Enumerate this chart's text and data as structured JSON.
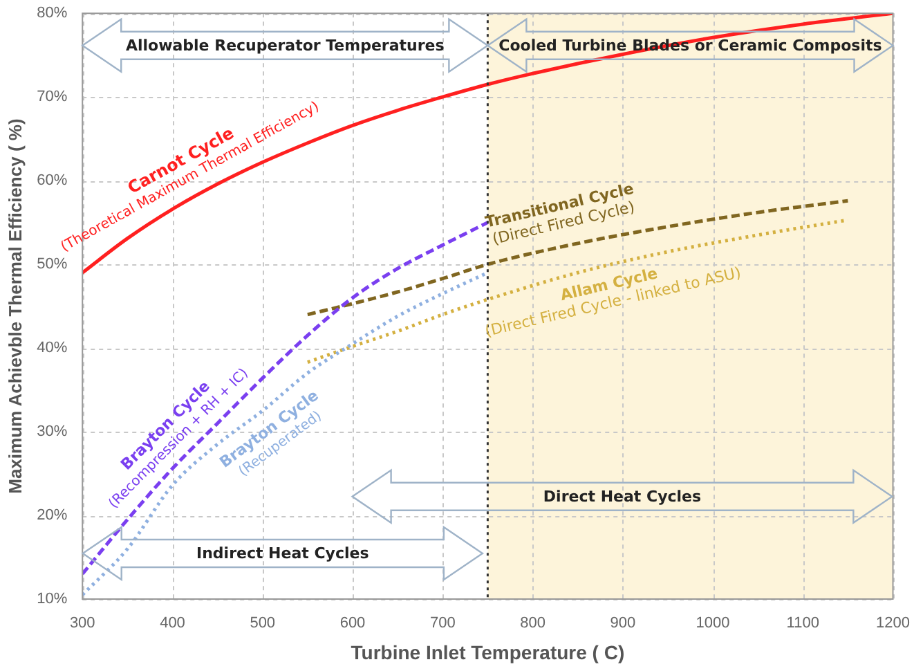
{
  "chart_data": {
    "type": "line",
    "xlabel": "Turbine Inlet Temperature ( C)",
    "ylabel": "Maximum Achievble Thermal Efficiency ( %)",
    "xlim": [
      300,
      1200
    ],
    "xticks": [
      300,
      400,
      500,
      600,
      700,
      800,
      900,
      1000,
      1100,
      1200
    ],
    "ylim": [
      10,
      80
    ],
    "yticks": [
      {
        "value": 10,
        "label": "10%"
      },
      {
        "value": 20,
        "label": "20%"
      },
      {
        "value": 30,
        "label": "30%"
      },
      {
        "value": 40,
        "label": "40%"
      },
      {
        "value": 50,
        "label": "50%"
      },
      {
        "value": 60,
        "label": "60%"
      },
      {
        "value": 70,
        "label": "70%"
      },
      {
        "value": 80,
        "label": "80%"
      }
    ],
    "grid": true,
    "legend": false,
    "marker": "none",
    "series": [
      {
        "name": "Carnot Cycle\n(Theoretical Maximum Thermal Efficiency)",
        "color": "#ff2020",
        "line_style": "solid",
        "x": [
          300,
          350,
          400,
          450,
          500,
          550,
          600,
          650,
          700,
          750,
          800,
          900,
          1000,
          1100,
          1200
        ],
        "values": [
          49,
          53.1,
          56.6,
          59.6,
          62.2,
          64.5,
          66.6,
          68.4,
          70,
          71.5,
          72.8,
          75.1,
          77.1,
          78.7,
          80
        ]
      },
      {
        "name": "Brayton Cycle\n(Recompression + RH + IC)",
        "color": "#7a3ff0",
        "line_style": "dashed",
        "x": [
          300,
          350,
          400,
          450,
          500,
          550,
          600,
          650,
          700,
          750
        ],
        "values": [
          13,
          19.5,
          25.6,
          31,
          36.4,
          41.5,
          46,
          49.5,
          52.3,
          55
        ]
      },
      {
        "name": "Brayton Cycle\n(Recuperated)",
        "color": "#8fb0e0",
        "line_style": "dotted",
        "x": [
          300,
          350,
          400,
          450,
          500,
          550,
          600,
          650,
          700,
          750
        ],
        "values": [
          10.5,
          16,
          23.6,
          28.5,
          32.5,
          37,
          40.5,
          43.8,
          46.5,
          49
        ]
      },
      {
        "name": "Transitional Cycle\n(Direct Fired Cycle)",
        "color": "#806620",
        "line_style": "dashed",
        "x": [
          550,
          600,
          650,
          700,
          750,
          850,
          950,
          1050,
          1150
        ],
        "values": [
          44,
          45.3,
          46.7,
          48.3,
          50,
          52.5,
          54.5,
          56.2,
          57.6
        ]
      },
      {
        "name": "Allam Cycle\n(Direct Fired Cycle - linked to ASU)",
        "color": "#d4b040",
        "line_style": "dotted",
        "x": [
          550,
          600,
          650,
          700,
          750,
          850,
          950,
          1050,
          1150
        ],
        "values": [
          38.3,
          40.2,
          42,
          44,
          45.8,
          49,
          51.5,
          53.5,
          55.3
        ]
      }
    ],
    "bands": [
      {
        "axis": "x",
        "from": 750,
        "to": 1200,
        "color": "#fdf4da"
      }
    ],
    "ref_lines": [
      {
        "axis": "x",
        "value": 750,
        "color": "#333333",
        "line_style": "dotted"
      }
    ],
    "annotations": [
      "Allowable Recuperator Temperatures",
      "Cooled Turbine Blades or Ceramic Composits",
      "Direct Heat Cycles",
      "Indirect Heat Cycles"
    ]
  }
}
